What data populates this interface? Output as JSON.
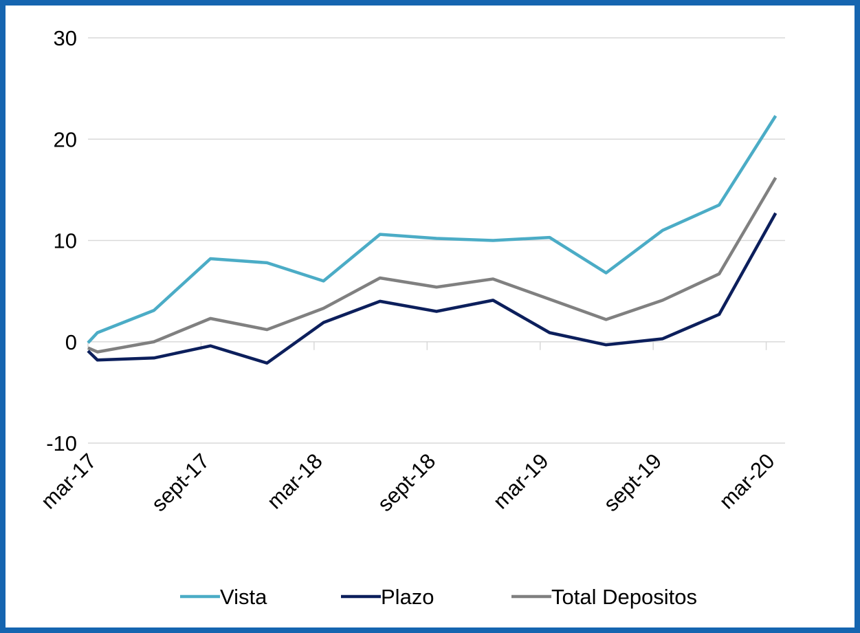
{
  "chart_data": {
    "type": "line",
    "x": [
      0,
      0.5,
      3.5,
      6.5,
      9.5,
      12.5,
      15.5,
      18.5,
      21.5,
      24.5,
      27.5,
      30.5,
      33.5,
      36.5
    ],
    "xlim": [
      0,
      37
    ],
    "xticks": [
      {
        "value": 0,
        "label": "mar-17"
      },
      {
        "value": 6,
        "label": "sept-17"
      },
      {
        "value": 12,
        "label": "mar-18"
      },
      {
        "value": 18,
        "label": "sept-18"
      },
      {
        "value": 24,
        "label": "mar-19"
      },
      {
        "value": 30,
        "label": "sept-19"
      },
      {
        "value": 36,
        "label": "mar-20"
      }
    ],
    "ylim": [
      -10,
      30
    ],
    "yticks": [
      -10,
      0,
      10,
      20,
      30
    ],
    "grid": true,
    "legend": "bottom",
    "series": [
      {
        "name": "Vista",
        "color": "#4bacc6",
        "values": [
          -0.1,
          0.9,
          3.1,
          8.2,
          7.8,
          6.0,
          10.6,
          10.2,
          10.0,
          10.3,
          6.8,
          11.0,
          13.5,
          22.3
        ]
      },
      {
        "name": "Plazo",
        "color": "#0c1f5c",
        "values": [
          -0.9,
          -1.8,
          -1.6,
          -0.4,
          -2.1,
          1.9,
          4.0,
          3.0,
          4.1,
          0.9,
          -0.3,
          0.3,
          2.7,
          12.7
        ]
      },
      {
        "name": "Total Depositos",
        "color": "#808080",
        "values": [
          -0.6,
          -1.0,
          0.0,
          2.3,
          1.2,
          3.3,
          6.3,
          5.4,
          6.2,
          4.2,
          2.2,
          4.1,
          6.7,
          16.2
        ]
      }
    ]
  }
}
